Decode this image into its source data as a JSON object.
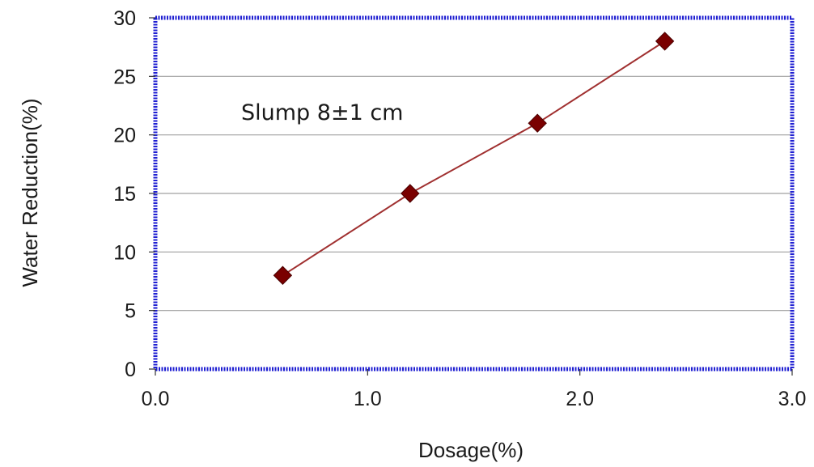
{
  "chart_data": {
    "type": "line",
    "title": "",
    "xlabel": "Dosage(%)",
    "ylabel": "Water Reduction(%)",
    "xlim": [
      0,
      3
    ],
    "ylim": [
      0,
      30
    ],
    "x_ticks": [
      0,
      1,
      2,
      3
    ],
    "x_tick_labels": [
      "0.0",
      "1.0",
      "2.0",
      "3.0"
    ],
    "y_ticks": [
      0,
      5,
      10,
      15,
      20,
      25,
      30
    ],
    "y_tick_labels": [
      "0",
      "5",
      "10",
      "15",
      "20",
      "25",
      "30"
    ],
    "grid": "horizontal",
    "legend": "none",
    "annotation": "Slump 8±1 cm",
    "series": [
      {
        "marker": "diamond",
        "color": "#7a0000",
        "line_color": "#a03030",
        "points": [
          {
            "x": 0.6,
            "y": 8
          },
          {
            "x": 1.2,
            "y": 15
          },
          {
            "x": 1.8,
            "y": 21
          },
          {
            "x": 2.4,
            "y": 28
          }
        ]
      }
    ],
    "frame_color": "#1e1ed2",
    "grid_color": "#a0a0a0"
  }
}
